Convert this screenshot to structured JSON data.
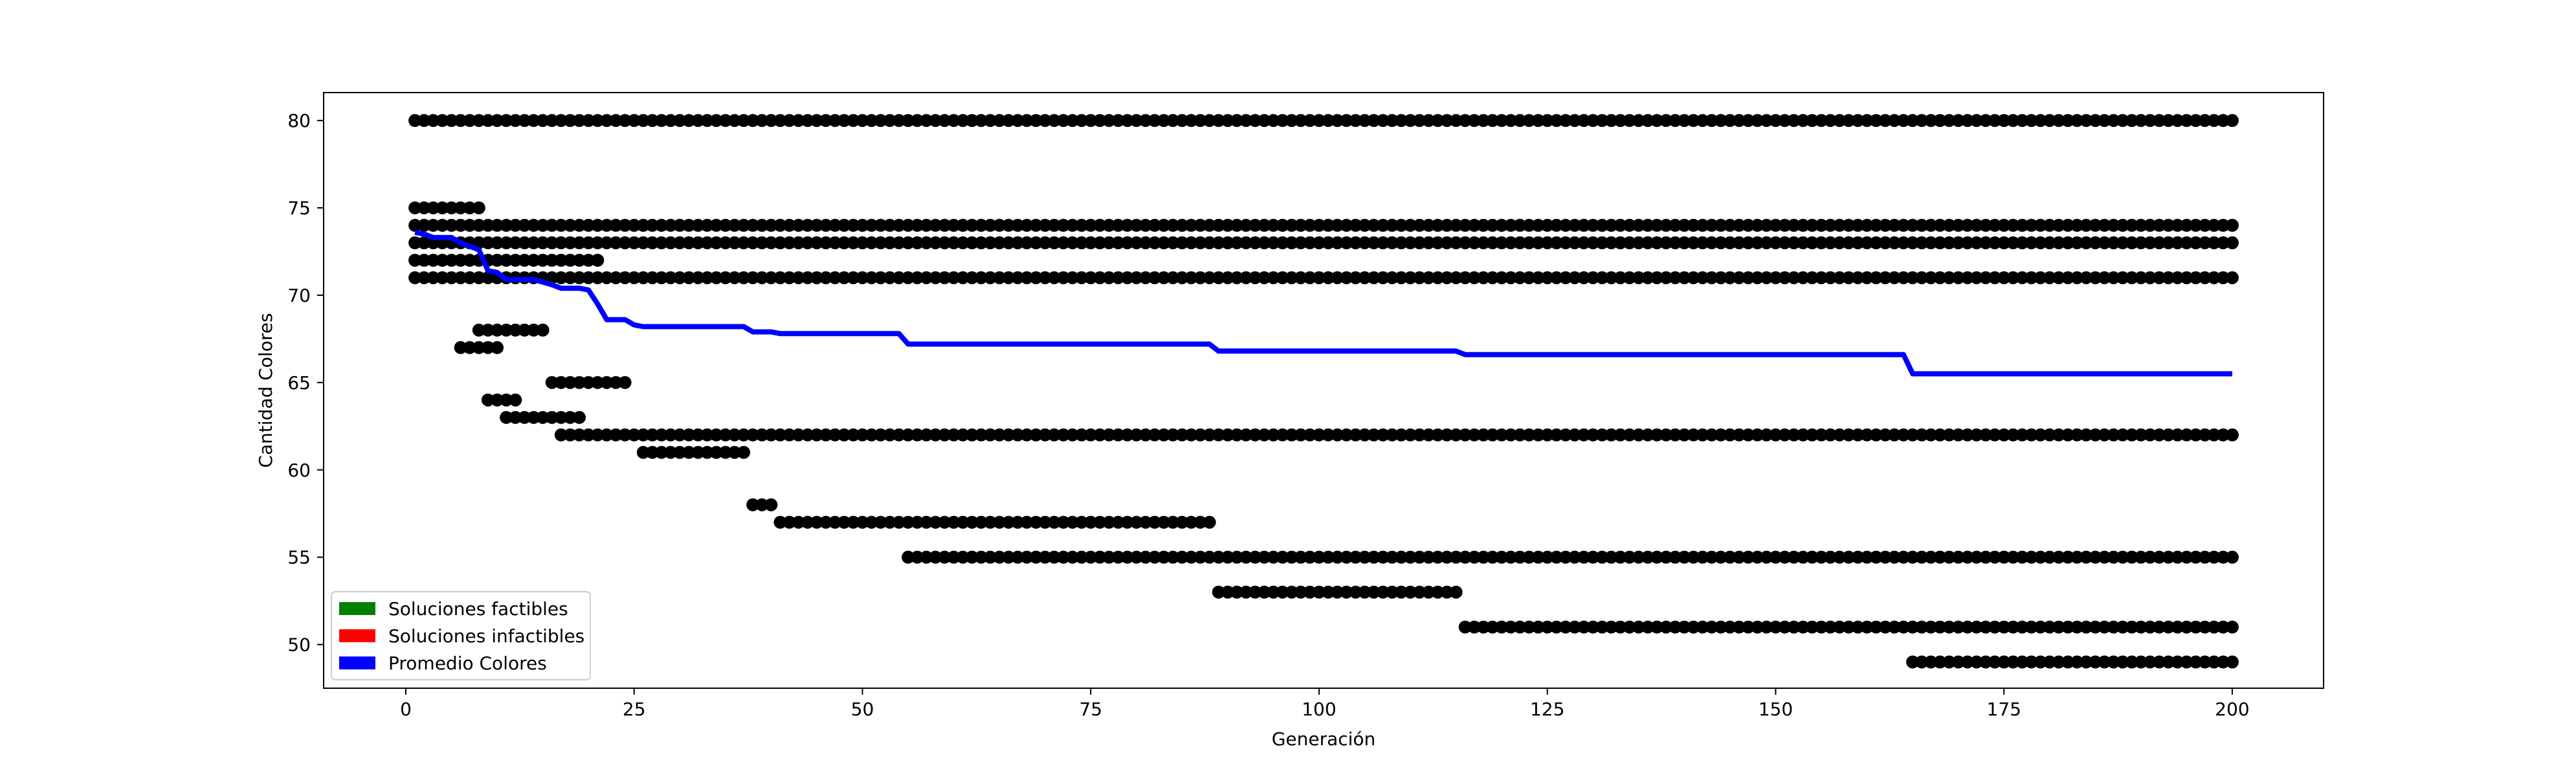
{
  "chart_data": {
    "type": "scatter",
    "title": "",
    "xlabel": "Generación",
    "ylabel": "Cantidad Colores",
    "xlim": [
      -9,
      210
    ],
    "ylim": [
      47.5,
      81.6
    ],
    "xticks": [
      0,
      25,
      50,
      75,
      100,
      125,
      150,
      175,
      200
    ],
    "yticks": [
      50,
      55,
      60,
      65,
      70,
      75,
      80
    ],
    "grid": false,
    "legend": {
      "placement": "lower-left",
      "entries": [
        {
          "label": "Soluciones factibles",
          "color": "#008000"
        },
        {
          "label": "Soluciones infactibles",
          "color": "#ff0000"
        },
        {
          "label": "Promedio Colores",
          "color": "#0000ff"
        }
      ]
    },
    "point_color": "#000000",
    "point_segments": [
      {
        "y": 80,
        "x_start": 1,
        "x_end": 200
      },
      {
        "y": 75,
        "x_start": 1,
        "x_end": 8
      },
      {
        "y": 74,
        "x_start": 1,
        "x_end": 200
      },
      {
        "y": 73,
        "x_start": 1,
        "x_end": 200
      },
      {
        "y": 72,
        "x_start": 1,
        "x_end": 21
      },
      {
        "y": 71,
        "x_start": 1,
        "x_end": 200
      },
      {
        "y": 68,
        "x_start": 8,
        "x_end": 15
      },
      {
        "y": 67,
        "x_start": 6,
        "x_end": 10
      },
      {
        "y": 65,
        "x_start": 16,
        "x_end": 24
      },
      {
        "y": 64,
        "x_start": 9,
        "x_end": 12
      },
      {
        "y": 63,
        "x_start": 11,
        "x_end": 19
      },
      {
        "y": 62,
        "x_start": 17,
        "x_end": 200
      },
      {
        "y": 61,
        "x_start": 26,
        "x_end": 37
      },
      {
        "y": 58,
        "x_start": 38,
        "x_end": 40
      },
      {
        "y": 57,
        "x_start": 41,
        "x_end": 88
      },
      {
        "y": 55,
        "x_start": 55,
        "x_end": 200
      },
      {
        "y": 53,
        "x_start": 89,
        "x_end": 115
      },
      {
        "y": 51,
        "x_start": 116,
        "x_end": 200
      },
      {
        "y": 49,
        "x_start": 165,
        "x_end": 200
      }
    ],
    "series": [
      {
        "name": "Promedio Colores",
        "color": "#0000ff",
        "type": "line",
        "x": [
          1,
          2,
          3,
          5,
          6,
          8,
          9,
          10,
          11,
          14,
          16,
          17,
          19,
          20,
          21,
          22,
          24,
          25,
          26,
          37,
          38,
          40,
          41,
          54,
          55,
          88,
          89,
          115,
          116,
          164,
          165,
          200
        ],
        "y": [
          73.6,
          73.5,
          73.3,
          73.3,
          73.0,
          72.6,
          71.4,
          71.3,
          70.9,
          70.9,
          70.6,
          70.4,
          70.4,
          70.3,
          69.5,
          68.6,
          68.6,
          68.3,
          68.2,
          68.2,
          67.9,
          67.9,
          67.8,
          67.8,
          67.2,
          67.2,
          66.8,
          66.8,
          66.6,
          66.6,
          65.5,
          65.5
        ]
      }
    ]
  }
}
